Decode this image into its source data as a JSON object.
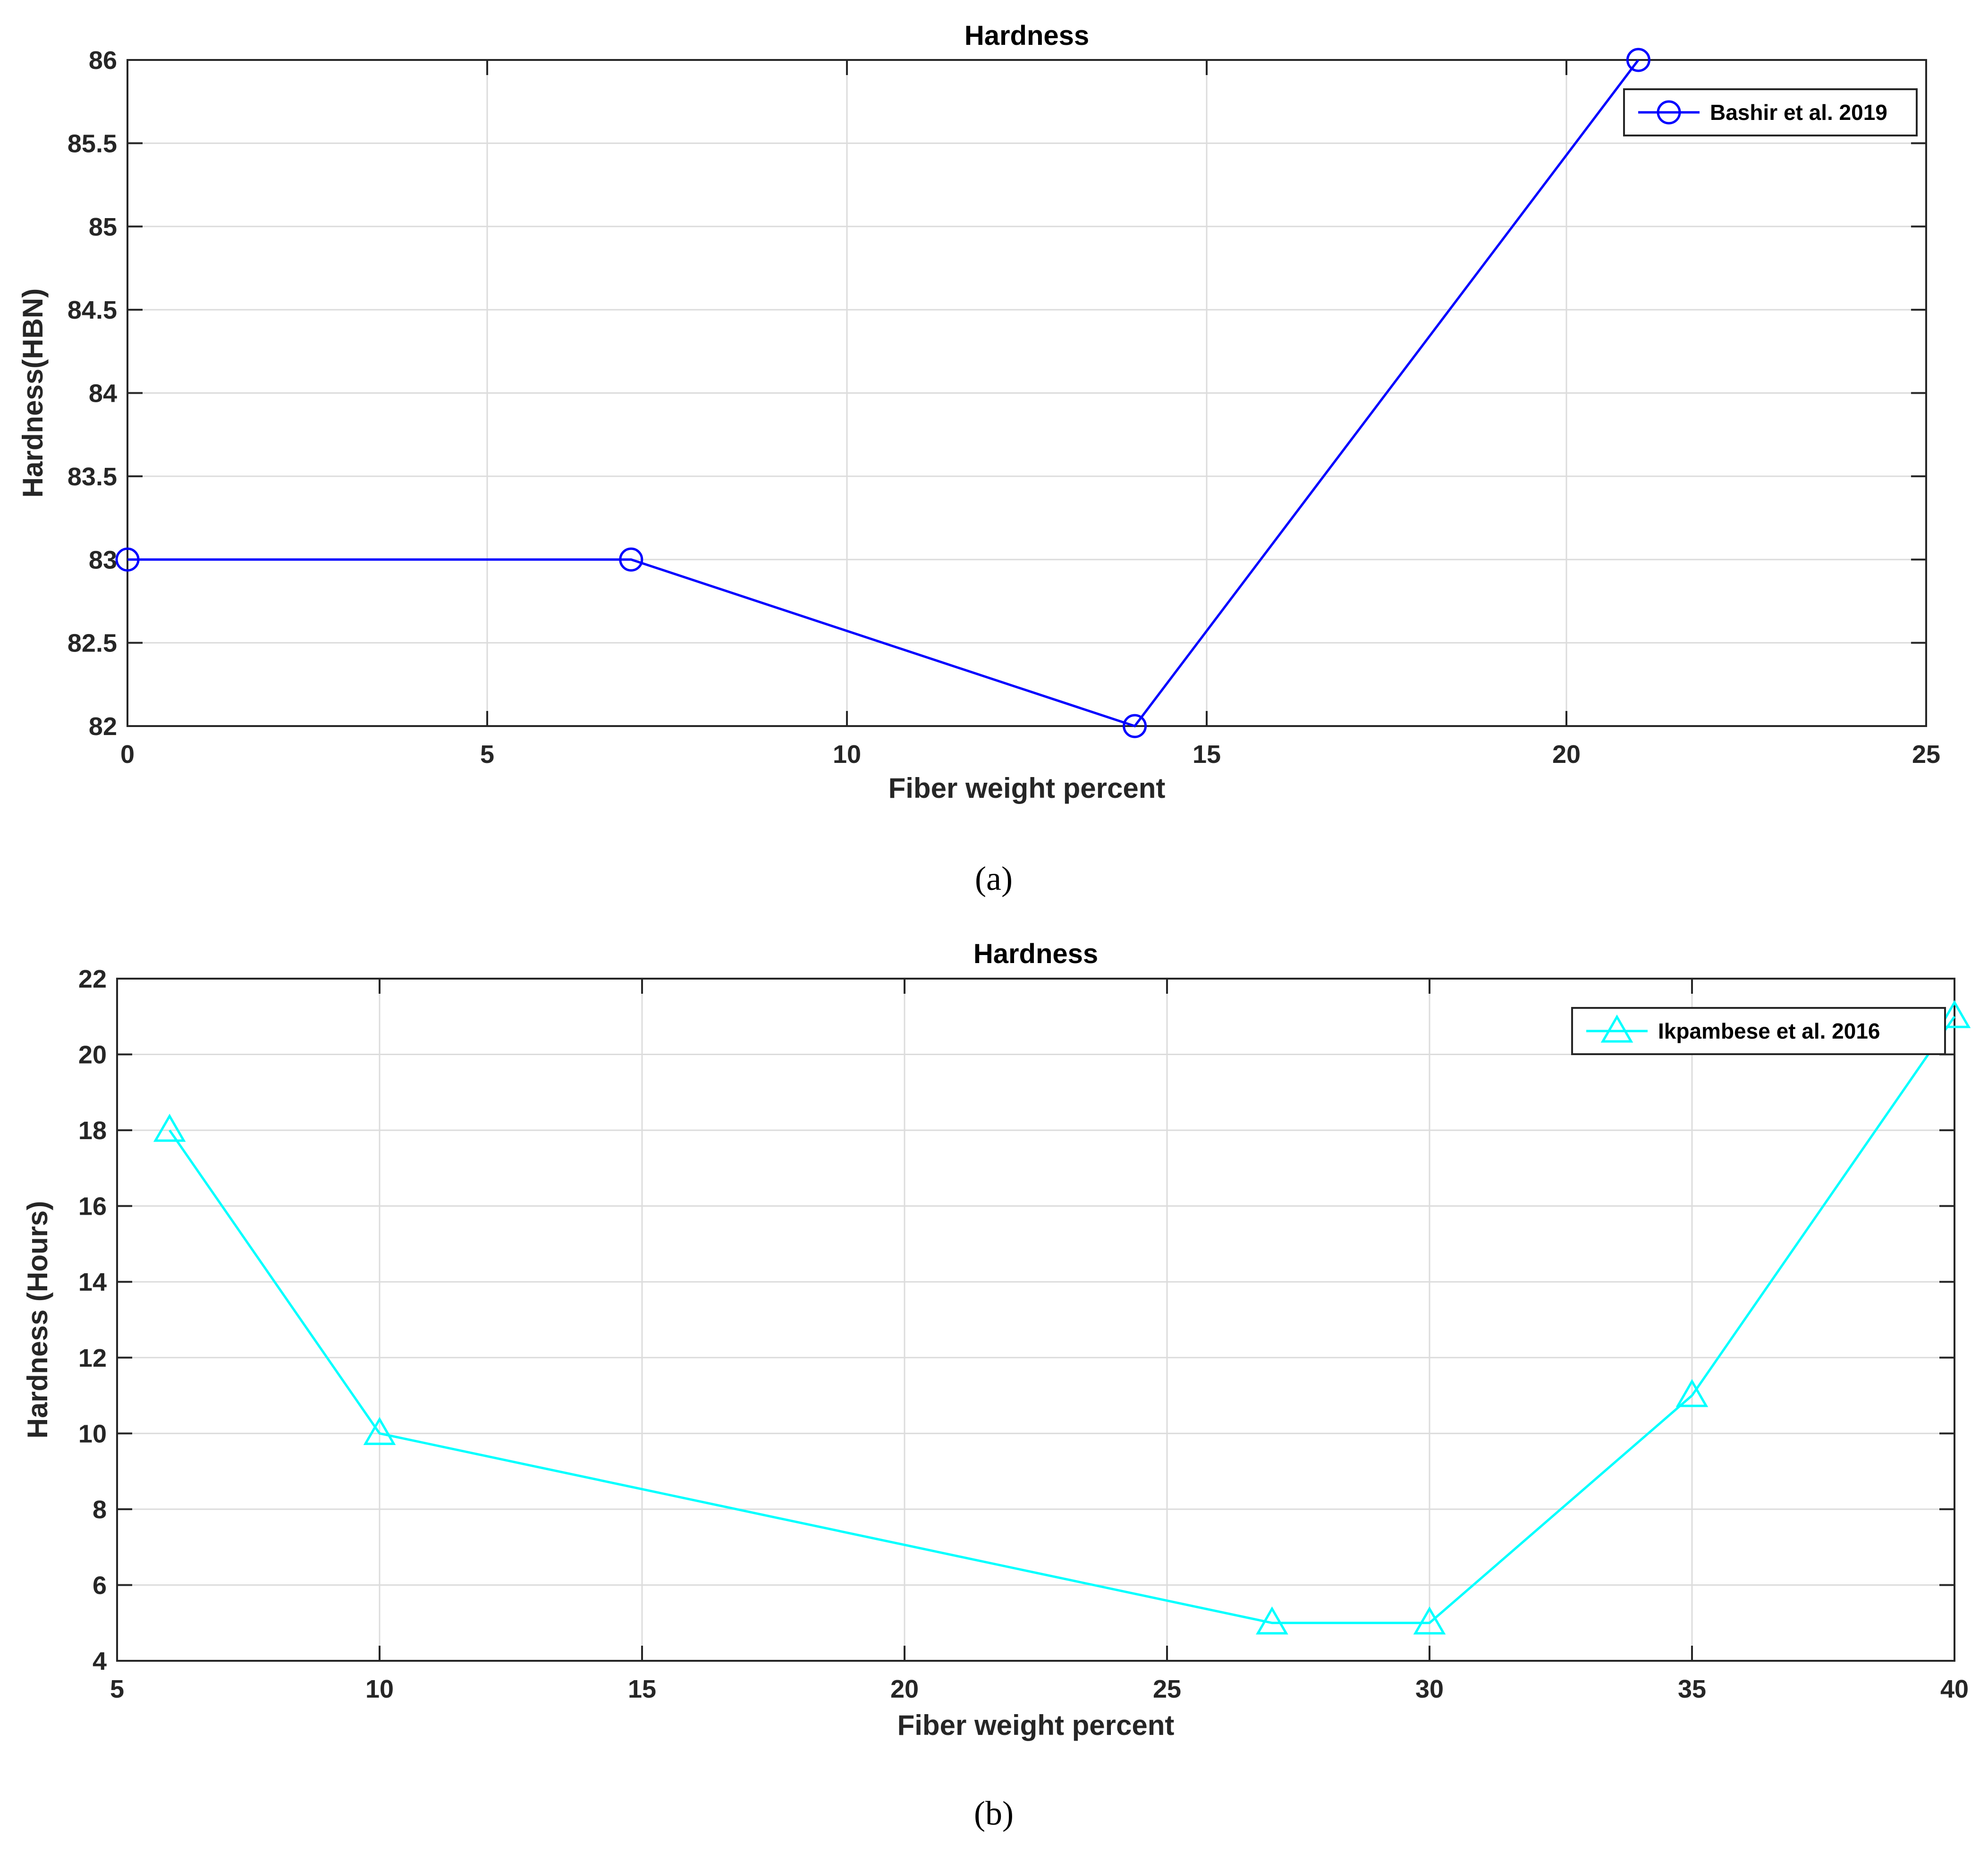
{
  "chart_data": [
    {
      "type": "line",
      "title": "Hardness",
      "xlabel": "Fiber weight percent",
      "ylabel": "Hardness(HBN)",
      "caption": "(a)",
      "xlim": [
        0,
        25
      ],
      "ylim": [
        82,
        86
      ],
      "xticks": [
        0,
        5,
        10,
        15,
        20,
        25
      ],
      "yticks": [
        82,
        82.5,
        83,
        83.5,
        84,
        84.5,
        85,
        85.5,
        86
      ],
      "xtick_labels": [
        "0",
        "5",
        "10",
        "15",
        "20",
        "25"
      ],
      "ytick_labels": [
        "82",
        "82.5",
        "83",
        "83.5",
        "84",
        "84.5",
        "85",
        "85.5",
        "86"
      ],
      "grid": true,
      "legend_position": "top-right",
      "series": [
        {
          "name": "Bashir et al. 2019",
          "color": "#0000ff",
          "marker": "circle",
          "x": [
            0,
            7,
            14,
            21
          ],
          "y": [
            83,
            83,
            82,
            86
          ]
        }
      ]
    },
    {
      "type": "line",
      "title": "Hardness",
      "xlabel": "Fiber weight percent",
      "ylabel": "Hardness (Hours)",
      "caption": "(b)",
      "xlim": [
        5,
        40
      ],
      "ylim": [
        4,
        22
      ],
      "xticks": [
        5,
        10,
        15,
        20,
        25,
        30,
        35,
        40
      ],
      "yticks": [
        4,
        6,
        8,
        10,
        12,
        14,
        16,
        18,
        20,
        22
      ],
      "xtick_labels": [
        "5",
        "10",
        "15",
        "20",
        "25",
        "30",
        "35",
        "40"
      ],
      "ytick_labels": [
        "4",
        "6",
        "8",
        "10",
        "12",
        "14",
        "16",
        "18",
        "20",
        "22"
      ],
      "grid": true,
      "legend_position": "top-right",
      "series": [
        {
          "name": "Ikpambese et al. 2016",
          "color": "#00ffff",
          "marker": "triangle",
          "x": [
            6,
            10,
            27,
            30,
            35,
            40
          ],
          "y": [
            18,
            10,
            5,
            5,
            11,
            21
          ]
        }
      ]
    }
  ]
}
